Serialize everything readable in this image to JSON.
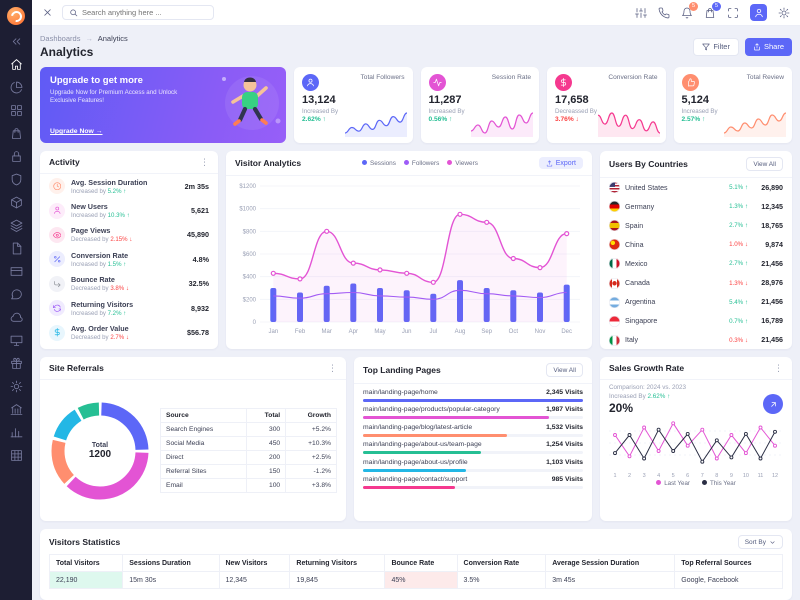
{
  "topbar": {
    "search_placeholder": "Search anything here ...",
    "actions": [
      {
        "icon": "sliders"
      },
      {
        "icon": "phone"
      },
      {
        "icon": "bell",
        "badge": "5",
        "badge_color": "#ff8e6f"
      },
      {
        "icon": "bag",
        "badge": "5",
        "badge_color": "#5c67f7"
      },
      {
        "icon": "maximize"
      },
      {
        "type": "avatar"
      },
      {
        "icon": "settings"
      }
    ]
  },
  "sidebar": {
    "icons": [
      {
        "icon": "chevrons"
      },
      {
        "icon": "home",
        "active": true
      },
      {
        "icon": "pie"
      },
      {
        "icon": "grid"
      },
      {
        "icon": "bag"
      },
      {
        "icon": "lock"
      },
      {
        "icon": "shield"
      },
      {
        "icon": "box"
      },
      {
        "icon": "layers"
      },
      {
        "icon": "file"
      },
      {
        "icon": "card"
      },
      {
        "icon": "chat"
      },
      {
        "icon": "cloud"
      },
      {
        "icon": "monitor"
      },
      {
        "icon": "gift"
      },
      {
        "icon": "settings"
      },
      {
        "icon": "bank"
      },
      {
        "icon": "chart"
      },
      {
        "icon": "table"
      }
    ]
  },
  "page": {
    "breadcrumb": [
      "Dashboards",
      "Analytics"
    ],
    "breadcrumb_sep": "→",
    "title": "Analytics",
    "filter_label": "Filter",
    "share_label": "Share"
  },
  "upgrade_card": {
    "title": "Upgrade to get more",
    "subtitle": "Upgrade Now for Premium Access and Unlock Exclusive Features!",
    "cta": "Upgrade Now →"
  },
  "stats": [
    {
      "label": "Total Followers",
      "value": "13,124",
      "change_label": "Increased By",
      "delta": "2.62% ↑",
      "dir": "up",
      "color": "#5C67F7",
      "icon": "user",
      "spark": [
        12,
        18,
        14,
        22,
        16,
        26,
        20,
        30,
        24,
        34
      ]
    },
    {
      "label": "Session Rate",
      "value": "11,287",
      "change_label": "Increased By",
      "delta": "0.56% ↑",
      "dir": "up",
      "color": "#E354D4",
      "icon": "activity",
      "spark": [
        14,
        20,
        12,
        24,
        18,
        28,
        16,
        30,
        22,
        32
      ]
    },
    {
      "label": "Conversion Rate",
      "value": "17,658",
      "change_label": "Decreassed By",
      "delta": "3.76% ↓",
      "dir": "down",
      "color": "#F5398F",
      "icon": "dollar",
      "spark": [
        24,
        16,
        26,
        14,
        24,
        12,
        20,
        10,
        18,
        8
      ]
    },
    {
      "label": "Total Review",
      "value": "5,124",
      "change_label": "Increased By",
      "delta": "2.57% ↑",
      "dir": "up",
      "color": "#FF8E6F",
      "icon": "thumb",
      "spark": [
        10,
        16,
        12,
        20,
        15,
        24,
        18,
        28,
        22,
        30
      ]
    }
  ],
  "activity": {
    "title": "Activity",
    "items": [
      {
        "label": "Avg. Session Duration",
        "prefix": "Increased by",
        "delta": "5.2% ↑",
        "dir": "up",
        "value": "2m 35s",
        "icon": "clock",
        "icon_bg": "#fff1ec",
        "icon_color": "#ff8e6f"
      },
      {
        "label": "New Users",
        "prefix": "Increased by",
        "delta": "10.3% ↑",
        "dir": "up",
        "value": "5,621",
        "icon": "user",
        "icon_bg": "#fdecfa",
        "icon_color": "#e354d4"
      },
      {
        "label": "Page Views",
        "prefix": "Decreased by",
        "delta": "2.15% ↓",
        "dir": "down",
        "value": "45,890",
        "icon": "eye",
        "icon_bg": "#fde7f1",
        "icon_color": "#f5398f"
      },
      {
        "label": "Conversion Rate",
        "prefix": "Increased by",
        "delta": "1.5% ↑",
        "dir": "up",
        "value": "4.8%",
        "icon": "percent",
        "icon_bg": "#ecedfe",
        "icon_color": "#5c67f7"
      },
      {
        "label": "Bounce Rate",
        "prefix": "Decreased by",
        "delta": "3.8% ↓",
        "dir": "down",
        "value": "32.5%",
        "icon": "bounce",
        "icon_bg": "#f1f2f7",
        "icon_color": "#8c9097"
      },
      {
        "label": "Returning Visitors",
        "prefix": "Increased by",
        "delta": "7.2% ↑",
        "dir": "up",
        "value": "8,932",
        "icon": "refresh",
        "icon_bg": "#f0ebfe",
        "icon_color": "#9e5cf7"
      },
      {
        "label": "Avg. Order Value",
        "prefix": "Decreased by",
        "delta": "2.7% ↓",
        "dir": "down",
        "value": "$56.78",
        "icon": "dollar",
        "icon_bg": "#e8f6fd",
        "icon_color": "#23b7e5"
      }
    ]
  },
  "visitor_analytics": {
    "title": "Visitor Analytics",
    "export_label": "Export",
    "legend": [
      {
        "label": "Sessions",
        "color": "#5C67F7"
      },
      {
        "label": "Followers",
        "color": "#9E5CF7"
      },
      {
        "label": "Viewers",
        "color": "#E354D4"
      }
    ]
  },
  "countries": {
    "title": "Users By Countries",
    "view_all": "View All",
    "items": [
      {
        "name": "United States",
        "flag": "us",
        "delta": "5.1% ↑",
        "dir": "up",
        "value": "26,890"
      },
      {
        "name": "Germany",
        "flag": "de",
        "delta": "1.3% ↑",
        "dir": "up",
        "value": "12,345"
      },
      {
        "name": "Spain",
        "flag": "es",
        "delta": "2.7% ↑",
        "dir": "up",
        "value": "18,765"
      },
      {
        "name": "China",
        "flag": "cn",
        "delta": "1.0% ↓",
        "dir": "down",
        "value": "9,874"
      },
      {
        "name": "Mexico",
        "flag": "mx",
        "delta": "2.7% ↑",
        "dir": "up",
        "value": "21,456"
      },
      {
        "name": "Canada",
        "flag": "ca",
        "delta": "1.3% ↓",
        "dir": "down",
        "value": "28,976"
      },
      {
        "name": "Argentina",
        "flag": "ar",
        "delta": "5.4% ↑",
        "dir": "up",
        "value": "21,456"
      },
      {
        "name": "Singapore",
        "flag": "sg",
        "delta": "0.7% ↑",
        "dir": "up",
        "value": "16,789"
      },
      {
        "name": "Italy",
        "flag": "it",
        "delta": "0.3% ↓",
        "dir": "down",
        "value": "21,456"
      }
    ]
  },
  "site_referrals": {
    "title": "Site Referrals",
    "donut_center_label": "Total",
    "donut_center_value": "1200",
    "columns": [
      "Source",
      "Total",
      "Growth"
    ],
    "rows": [
      {
        "source": "Search Engines",
        "total": "300",
        "growth": "+5.2%",
        "dir": "up",
        "color": "#5C67F7"
      },
      {
        "source": "Social Media",
        "total": "450",
        "growth": "+10.3%",
        "dir": "up",
        "color": "#E354D4"
      },
      {
        "source": "Direct",
        "total": "200",
        "growth": "+2.5%",
        "dir": "up",
        "color": "#FF8E6F"
      },
      {
        "source": "Referral Sites",
        "total": "150",
        "growth": "-1.2%",
        "dir": "down",
        "color": "#23B7E5"
      },
      {
        "source": "Email",
        "total": "100",
        "growth": "+3.8%",
        "dir": "up",
        "color": "#26BF94"
      }
    ]
  },
  "landing_pages": {
    "title": "Top Landing Pages",
    "view_all": "View All",
    "items": [
      {
        "page": "main/landing-page/home",
        "visits": "2,345 Visits",
        "color": "#5C67F7"
      },
      {
        "page": "main/landing-page/products/popular-category",
        "visits": "1,987 Visits",
        "color": "#E354D4"
      },
      {
        "page": "main/landing-page/blog/latest-article",
        "visits": "1,532 Visits",
        "color": "#FF8E6F"
      },
      {
        "page": "main/landing-page/about-us/team-page",
        "visits": "1,254 Visits",
        "color": "#26BF94"
      },
      {
        "page": "main/landing-page/about-us/profile",
        "visits": "1,103 Visits",
        "color": "#23B7E5"
      },
      {
        "page": "main/landing-page/contact/support",
        "visits": "985 Visits",
        "color": "#F5398F"
      }
    ]
  },
  "sales_growth": {
    "title": "Sales Growth Rate",
    "comparison": "Comparison: 2024 vs. 2023",
    "change_label": "Increased By",
    "delta": "2.62% ↑",
    "dir": "up",
    "value": "20%",
    "legend": [
      {
        "label": "Last Year",
        "color": "#E354D4"
      },
      {
        "label": "This Year",
        "color": "#2A2E44"
      }
    ]
  },
  "visitors_statistics": {
    "title": "Visitors Statistics",
    "sort_by": "Sort By",
    "columns": [
      "Total Visitors",
      "Sessions Duration",
      "New Visitors",
      "Returning Visitors",
      "Bounce Rate",
      "Conversion Rate",
      "Average Session Duration",
      "Top Referral Sources"
    ],
    "row": {
      "total_visitors": "22,190",
      "sessions_duration": "15m 30s",
      "new_visitors": "12,345",
      "returning_visitors": "19,845",
      "bounce_rate": "45%",
      "conversion_rate": "3.5%",
      "avg_session_duration": "3m 45s",
      "top_referral_sources": "Google, Facebook"
    }
  },
  "chart_data": [
    {
      "type": "bar",
      "title": "Visitor Analytics",
      "x": [
        "Jan",
        "Feb",
        "Mar",
        "Apr",
        "May",
        "Jun",
        "Jul",
        "Aug",
        "Sep",
        "Oct",
        "Nov",
        "Dec"
      ],
      "ylim": [
        0,
        1200
      ],
      "ytick_labels": [
        "0",
        "$200",
        "$400",
        "$600",
        "$800",
        "$1000",
        "$1200"
      ],
      "legend_position": "top",
      "grid": true,
      "series": [
        {
          "name": "Sessions",
          "type": "bar",
          "color": "#5C67F7",
          "values": [
            300,
            260,
            320,
            340,
            300,
            280,
            250,
            370,
            300,
            280,
            260,
            330
          ]
        },
        {
          "name": "Followers",
          "type": "line",
          "color": "#9E5CF7",
          "values": [
            230,
            210,
            250,
            260,
            230,
            220,
            200,
            280,
            250,
            230,
            215,
            260
          ]
        },
        {
          "name": "Viewers",
          "type": "line",
          "color": "#E354D4",
          "values": [
            430,
            380,
            800,
            520,
            460,
            430,
            350,
            950,
            880,
            560,
            480,
            780
          ]
        }
      ]
    },
    {
      "type": "pie",
      "title": "Site Referrals",
      "labels": [
        "Search Engines",
        "Social Media",
        "Direct",
        "Referral Sites",
        "Email"
      ],
      "values": [
        300,
        450,
        200,
        150,
        100
      ],
      "total": 1200
    },
    {
      "type": "line",
      "title": "Sales Growth Rate",
      "x": [
        1,
        2,
        3,
        4,
        5,
        6,
        7,
        8,
        9,
        10,
        11,
        12
      ],
      "grid": true,
      "legend_position": "bottom",
      "series": [
        {
          "name": "Last Year",
          "color": "#E354D4",
          "values": [
            55,
            35,
            62,
            40,
            66,
            45,
            60,
            33,
            55,
            38,
            62,
            45
          ]
        },
        {
          "name": "This Year",
          "color": "#2A2E44",
          "values": [
            38,
            55,
            33,
            60,
            40,
            56,
            30,
            50,
            34,
            56,
            33,
            58
          ]
        }
      ]
    }
  ]
}
